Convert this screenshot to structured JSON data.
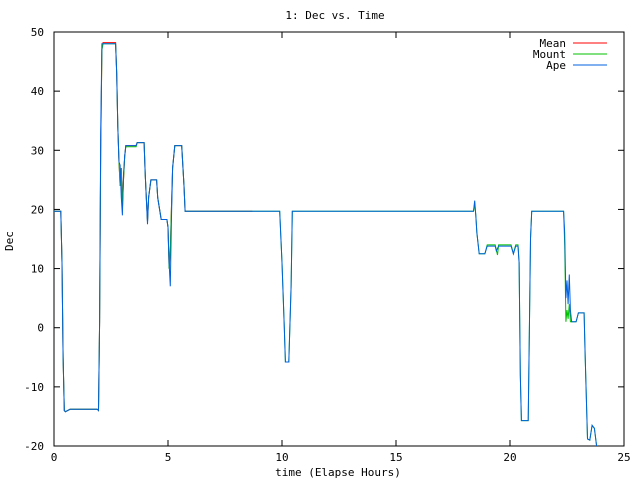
{
  "chart_data": {
    "type": "line",
    "title": "1: Dec vs. Time",
    "xlabel": "time (Elapse Hours)",
    "ylabel": "Dec",
    "xlim": [
      0,
      25
    ],
    "ylim": [
      -20,
      50
    ],
    "xticks": [
      0,
      5,
      10,
      15,
      20,
      25
    ],
    "yticks": [
      -20,
      -10,
      0,
      10,
      20,
      30,
      40,
      50
    ],
    "grid": false,
    "legend_position": "top-right",
    "series": [
      {
        "name": "Mean",
        "color": "#ff0000",
        "points": [
          [
            0.0,
            19.7
          ],
          [
            0.3,
            19.7
          ],
          [
            0.35,
            11
          ],
          [
            0.4,
            -5
          ],
          [
            0.45,
            -14
          ],
          [
            0.5,
            -14.2
          ],
          [
            0.7,
            -13.8
          ],
          [
            1.9,
            -13.8
          ],
          [
            1.95,
            -14
          ],
          [
            2.0,
            1
          ],
          [
            2.05,
            30
          ],
          [
            2.1,
            47
          ],
          [
            2.15,
            48.2
          ],
          [
            2.7,
            48.2
          ],
          [
            2.75,
            43
          ],
          [
            2.8,
            34
          ],
          [
            2.85,
            28
          ],
          [
            2.9,
            24
          ],
          [
            2.95,
            27
          ],
          [
            3.0,
            21
          ],
          [
            3.05,
            25
          ],
          [
            3.1,
            29
          ],
          [
            3.15,
            30.8
          ],
          [
            3.6,
            30.8
          ],
          [
            3.65,
            31.3
          ],
          [
            3.95,
            31.3
          ],
          [
            4.0,
            26
          ],
          [
            4.05,
            22
          ],
          [
            4.1,
            18
          ],
          [
            4.15,
            22
          ],
          [
            4.25,
            25
          ],
          [
            4.5,
            25
          ],
          [
            4.55,
            22
          ],
          [
            4.7,
            18.3
          ],
          [
            4.95,
            18.3
          ],
          [
            5.0,
            17
          ],
          [
            5.05,
            10
          ],
          [
            5.1,
            13
          ],
          [
            5.15,
            20
          ],
          [
            5.2,
            27
          ],
          [
            5.3,
            30.8
          ],
          [
            5.6,
            30.8
          ],
          [
            5.7,
            24
          ],
          [
            5.75,
            19.7
          ],
          [
            8.7,
            19.7
          ]
        ]
      },
      {
        "name": "Mount",
        "color": "#00c000",
        "points": [
          [
            0.0,
            19.7
          ],
          [
            0.3,
            19.7
          ],
          [
            0.35,
            11
          ],
          [
            0.4,
            -5
          ],
          [
            0.45,
            -14
          ],
          [
            0.5,
            -14.2
          ],
          [
            0.7,
            -13.8
          ],
          [
            1.9,
            -13.8
          ],
          [
            1.95,
            -14
          ],
          [
            2.0,
            1
          ],
          [
            2.05,
            30
          ],
          [
            2.1,
            47
          ],
          [
            2.15,
            48
          ],
          [
            2.7,
            48
          ],
          [
            2.75,
            43
          ],
          [
            2.8,
            34
          ],
          [
            2.85,
            28
          ],
          [
            2.9,
            24
          ],
          [
            2.95,
            27
          ],
          [
            3.0,
            20
          ],
          [
            3.05,
            25
          ],
          [
            3.1,
            29
          ],
          [
            3.15,
            30.6
          ],
          [
            3.6,
            30.6
          ],
          [
            3.65,
            31.3
          ],
          [
            3.95,
            31.3
          ],
          [
            4.0,
            26
          ],
          [
            4.05,
            22
          ],
          [
            4.1,
            18
          ],
          [
            4.15,
            22
          ],
          [
            4.25,
            25
          ],
          [
            4.5,
            25
          ],
          [
            4.55,
            22
          ],
          [
            4.7,
            18.3
          ],
          [
            4.95,
            18.3
          ],
          [
            5.0,
            17
          ],
          [
            5.05,
            10
          ],
          [
            5.1,
            13
          ],
          [
            5.15,
            20
          ],
          [
            5.2,
            27
          ],
          [
            5.3,
            30.8
          ],
          [
            5.6,
            30.8
          ],
          [
            5.7,
            24
          ],
          [
            5.75,
            19.7
          ],
          [
            8.7,
            19.7
          ],
          [
            9.9,
            19.7
          ],
          [
            10.0,
            11
          ],
          [
            10.1,
            0
          ],
          [
            10.15,
            -5.8
          ],
          [
            10.3,
            -5.8
          ],
          [
            10.4,
            7
          ],
          [
            10.45,
            19.7
          ],
          [
            18.4,
            19.7
          ],
          [
            18.45,
            21
          ],
          [
            18.5,
            19
          ],
          [
            18.55,
            16
          ],
          [
            18.65,
            12.5
          ],
          [
            18.9,
            12.5
          ],
          [
            19.0,
            14
          ],
          [
            19.35,
            14
          ],
          [
            19.45,
            12.3
          ],
          [
            19.5,
            14
          ],
          [
            20.05,
            14
          ],
          [
            20.15,
            12.5
          ],
          [
            20.25,
            14
          ],
          [
            20.35,
            14
          ],
          [
            20.4,
            11
          ],
          [
            20.45,
            -8
          ],
          [
            20.5,
            -15.7
          ],
          [
            20.8,
            -15.7
          ],
          [
            20.85,
            0
          ],
          [
            20.9,
            15
          ],
          [
            20.95,
            19.7
          ],
          [
            22.35,
            19.7
          ],
          [
            22.4,
            14
          ],
          [
            22.45,
            1
          ],
          [
            22.5,
            3
          ],
          [
            22.55,
            1.5
          ],
          [
            22.6,
            4
          ],
          [
            22.65,
            1
          ],
          [
            22.9,
            1
          ],
          [
            23.0,
            2.5
          ],
          [
            23.25,
            2.5
          ],
          [
            23.3,
            -5
          ],
          [
            23.4,
            -18.8
          ],
          [
            23.5,
            -19
          ],
          [
            23.6,
            -16.5
          ],
          [
            23.7,
            -17
          ],
          [
            23.8,
            -20
          ]
        ]
      },
      {
        "name": "Ape",
        "color": "#0060e0",
        "points": [
          [
            0.0,
            19.7
          ],
          [
            0.3,
            19.7
          ],
          [
            0.35,
            11
          ],
          [
            0.4,
            -5
          ],
          [
            0.45,
            -14
          ],
          [
            0.5,
            -14.2
          ],
          [
            0.7,
            -13.8
          ],
          [
            1.9,
            -13.8
          ],
          [
            1.95,
            -14
          ],
          [
            2.0,
            1
          ],
          [
            2.05,
            33
          ],
          [
            2.1,
            48
          ],
          [
            2.7,
            48
          ],
          [
            2.75,
            43
          ],
          [
            2.8,
            34
          ],
          [
            2.85,
            28
          ],
          [
            2.9,
            27.5
          ],
          [
            2.95,
            22
          ],
          [
            3.0,
            19
          ],
          [
            3.05,
            26
          ],
          [
            3.1,
            29
          ],
          [
            3.15,
            30.8
          ],
          [
            3.6,
            30.8
          ],
          [
            3.65,
            31.3
          ],
          [
            3.95,
            31.3
          ],
          [
            4.0,
            26
          ],
          [
            4.05,
            22
          ],
          [
            4.1,
            17.5
          ],
          [
            4.15,
            22
          ],
          [
            4.25,
            25
          ],
          [
            4.5,
            25
          ],
          [
            4.55,
            22
          ],
          [
            4.7,
            18.3
          ],
          [
            4.95,
            18.3
          ],
          [
            5.0,
            17
          ],
          [
            5.05,
            11
          ],
          [
            5.1,
            7
          ],
          [
            5.15,
            18
          ],
          [
            5.2,
            27
          ],
          [
            5.3,
            30.8
          ],
          [
            5.6,
            30.8
          ],
          [
            5.7,
            24
          ],
          [
            5.75,
            19.7
          ],
          [
            9.9,
            19.7
          ],
          [
            10.0,
            11
          ],
          [
            10.1,
            0
          ],
          [
            10.15,
            -5.8
          ],
          [
            10.3,
            -5.8
          ],
          [
            10.4,
            7
          ],
          [
            10.45,
            19.7
          ],
          [
            18.4,
            19.7
          ],
          [
            18.45,
            21.5
          ],
          [
            18.5,
            19
          ],
          [
            18.55,
            16
          ],
          [
            18.65,
            12.5
          ],
          [
            18.9,
            12.5
          ],
          [
            19.0,
            13.8
          ],
          [
            19.35,
            13.8
          ],
          [
            19.4,
            13
          ],
          [
            19.5,
            13.8
          ],
          [
            20.05,
            13.8
          ],
          [
            20.15,
            12.5
          ],
          [
            20.25,
            13.8
          ],
          [
            20.35,
            13.8
          ],
          [
            20.4,
            11
          ],
          [
            20.45,
            -8
          ],
          [
            20.5,
            -15.7
          ],
          [
            20.8,
            -15.7
          ],
          [
            20.85,
            0
          ],
          [
            20.9,
            15
          ],
          [
            20.95,
            19.7
          ],
          [
            22.35,
            19.7
          ],
          [
            22.4,
            16
          ],
          [
            22.45,
            5
          ],
          [
            22.5,
            8
          ],
          [
            22.55,
            4
          ],
          [
            22.6,
            9
          ],
          [
            22.65,
            3
          ],
          [
            22.7,
            1
          ],
          [
            22.9,
            1
          ],
          [
            23.0,
            2.5
          ],
          [
            23.25,
            2.5
          ],
          [
            23.3,
            -5
          ],
          [
            23.4,
            -18.8
          ],
          [
            23.5,
            -19
          ],
          [
            23.6,
            -16.5
          ],
          [
            23.7,
            -17
          ],
          [
            23.8,
            -20
          ]
        ]
      }
    ]
  }
}
